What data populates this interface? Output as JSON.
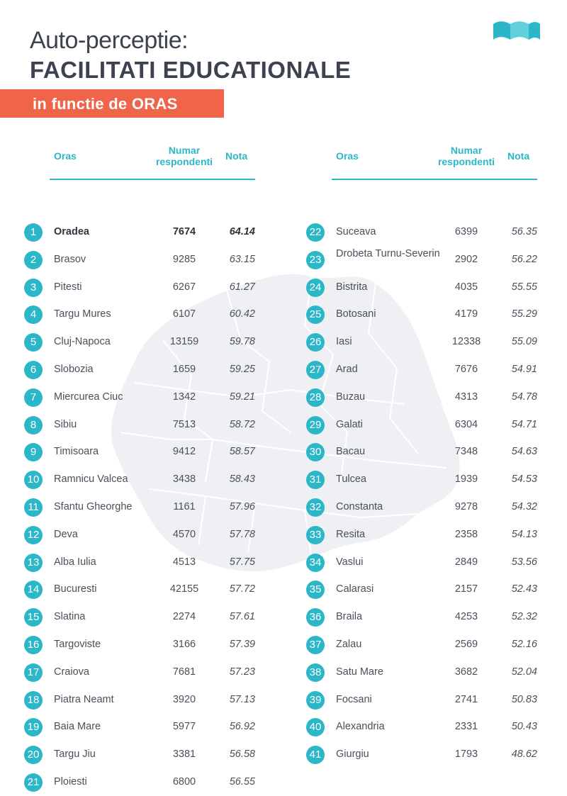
{
  "header": {
    "title_line1": "Auto-perceptie:",
    "title_line2": "FACILITATI EDUCATIONALE",
    "banner": "in functie de ORAS"
  },
  "colors": {
    "accent": "#2bb7c8",
    "banner": "#f0654a",
    "map": "#eef0f3"
  },
  "table": {
    "headers": {
      "city": "Oras",
      "numar": "Numar respondenti",
      "nota": "Nota"
    },
    "left": [
      {
        "rank": "1",
        "city": "Oradea",
        "numar": "7674",
        "nota": "64.14"
      },
      {
        "rank": "2",
        "city": "Brasov",
        "numar": "9285",
        "nota": "63.15"
      },
      {
        "rank": "3",
        "city": "Pitesti",
        "numar": "6267",
        "nota": "61.27"
      },
      {
        "rank": "4",
        "city": "Targu Mures",
        "numar": "6107",
        "nota": "60.42"
      },
      {
        "rank": "5",
        "city": "Cluj-Napoca",
        "numar": "13159",
        "nota": "59.78"
      },
      {
        "rank": "6",
        "city": "Slobozia",
        "numar": "1659",
        "nota": "59.25"
      },
      {
        "rank": "7",
        "city": "Miercurea Ciuc",
        "numar": "1342",
        "nota": "59.21"
      },
      {
        "rank": "8",
        "city": "Sibiu",
        "numar": "7513",
        "nota": "58.72"
      },
      {
        "rank": "9",
        "city": "Timisoara",
        "numar": "9412",
        "nota": "58.57"
      },
      {
        "rank": "10",
        "city": "Ramnicu Valcea",
        "numar": "3438",
        "nota": "58.43"
      },
      {
        "rank": "11",
        "city": "Sfantu Gheorghe",
        "numar": "1161",
        "nota": "57.96"
      },
      {
        "rank": "12",
        "city": "Deva",
        "numar": "4570",
        "nota": "57.78"
      },
      {
        "rank": "13",
        "city": "Alba Iulia",
        "numar": "4513",
        "nota": "57.75"
      },
      {
        "rank": "14",
        "city": "Bucuresti",
        "numar": "42155",
        "nota": "57.72"
      },
      {
        "rank": "15",
        "city": "Slatina",
        "numar": "2274",
        "nota": "57.61"
      },
      {
        "rank": "16",
        "city": "Targoviste",
        "numar": "3166",
        "nota": "57.39"
      },
      {
        "rank": "17",
        "city": "Craiova",
        "numar": "7681",
        "nota": "57.23"
      },
      {
        "rank": "18",
        "city": "Piatra Neamt",
        "numar": "3920",
        "nota": "57.13"
      },
      {
        "rank": "19",
        "city": "Baia Mare",
        "numar": "5977",
        "nota": "56.92"
      },
      {
        "rank": "20",
        "city": "Targu Jiu",
        "numar": "3381",
        "nota": "56.58"
      },
      {
        "rank": "21",
        "city": "Ploiesti",
        "numar": "6800",
        "nota": "56.55"
      }
    ],
    "right": [
      {
        "rank": "22",
        "city": "Suceava",
        "numar": "6399",
        "nota": "56.35"
      },
      {
        "rank": "23",
        "city": "Drobeta Turnu-Severin",
        "numar": "2902",
        "nota": "56.22"
      },
      {
        "rank": "24",
        "city": "Bistrita",
        "numar": "4035",
        "nota": "55.55"
      },
      {
        "rank": "25",
        "city": "Botosani",
        "numar": "4179",
        "nota": "55.29"
      },
      {
        "rank": "26",
        "city": "Iasi",
        "numar": "12338",
        "nota": "55.09"
      },
      {
        "rank": "27",
        "city": "Arad",
        "numar": "7676",
        "nota": "54.91"
      },
      {
        "rank": "28",
        "city": "Buzau",
        "numar": "4313",
        "nota": "54.78"
      },
      {
        "rank": "29",
        "city": "Galati",
        "numar": "6304",
        "nota": "54.71"
      },
      {
        "rank": "30",
        "city": "Bacau",
        "numar": "7348",
        "nota": "54.63"
      },
      {
        "rank": "31",
        "city": "Tulcea",
        "numar": "1939",
        "nota": "54.53"
      },
      {
        "rank": "32",
        "city": "Constanta",
        "numar": "9278",
        "nota": "54.32"
      },
      {
        "rank": "33",
        "city": "Resita",
        "numar": "2358",
        "nota": "54.13"
      },
      {
        "rank": "34",
        "city": "Vaslui",
        "numar": "2849",
        "nota": "53.56"
      },
      {
        "rank": "35",
        "city": "Calarasi",
        "numar": "2157",
        "nota": "52.43"
      },
      {
        "rank": "36",
        "city": "Braila",
        "numar": "4253",
        "nota": "52.32"
      },
      {
        "rank": "37",
        "city": "Zalau",
        "numar": "2569",
        "nota": "52.16"
      },
      {
        "rank": "38",
        "city": "Satu Mare",
        "numar": "3682",
        "nota": "52.04"
      },
      {
        "rank": "39",
        "city": "Focsani",
        "numar": "2741",
        "nota": "50.83"
      },
      {
        "rank": "40",
        "city": "Alexandria",
        "numar": "2331",
        "nota": "50.43"
      },
      {
        "rank": "41",
        "city": "Giurgiu",
        "numar": "1793",
        "nota": "48.62"
      }
    ]
  }
}
